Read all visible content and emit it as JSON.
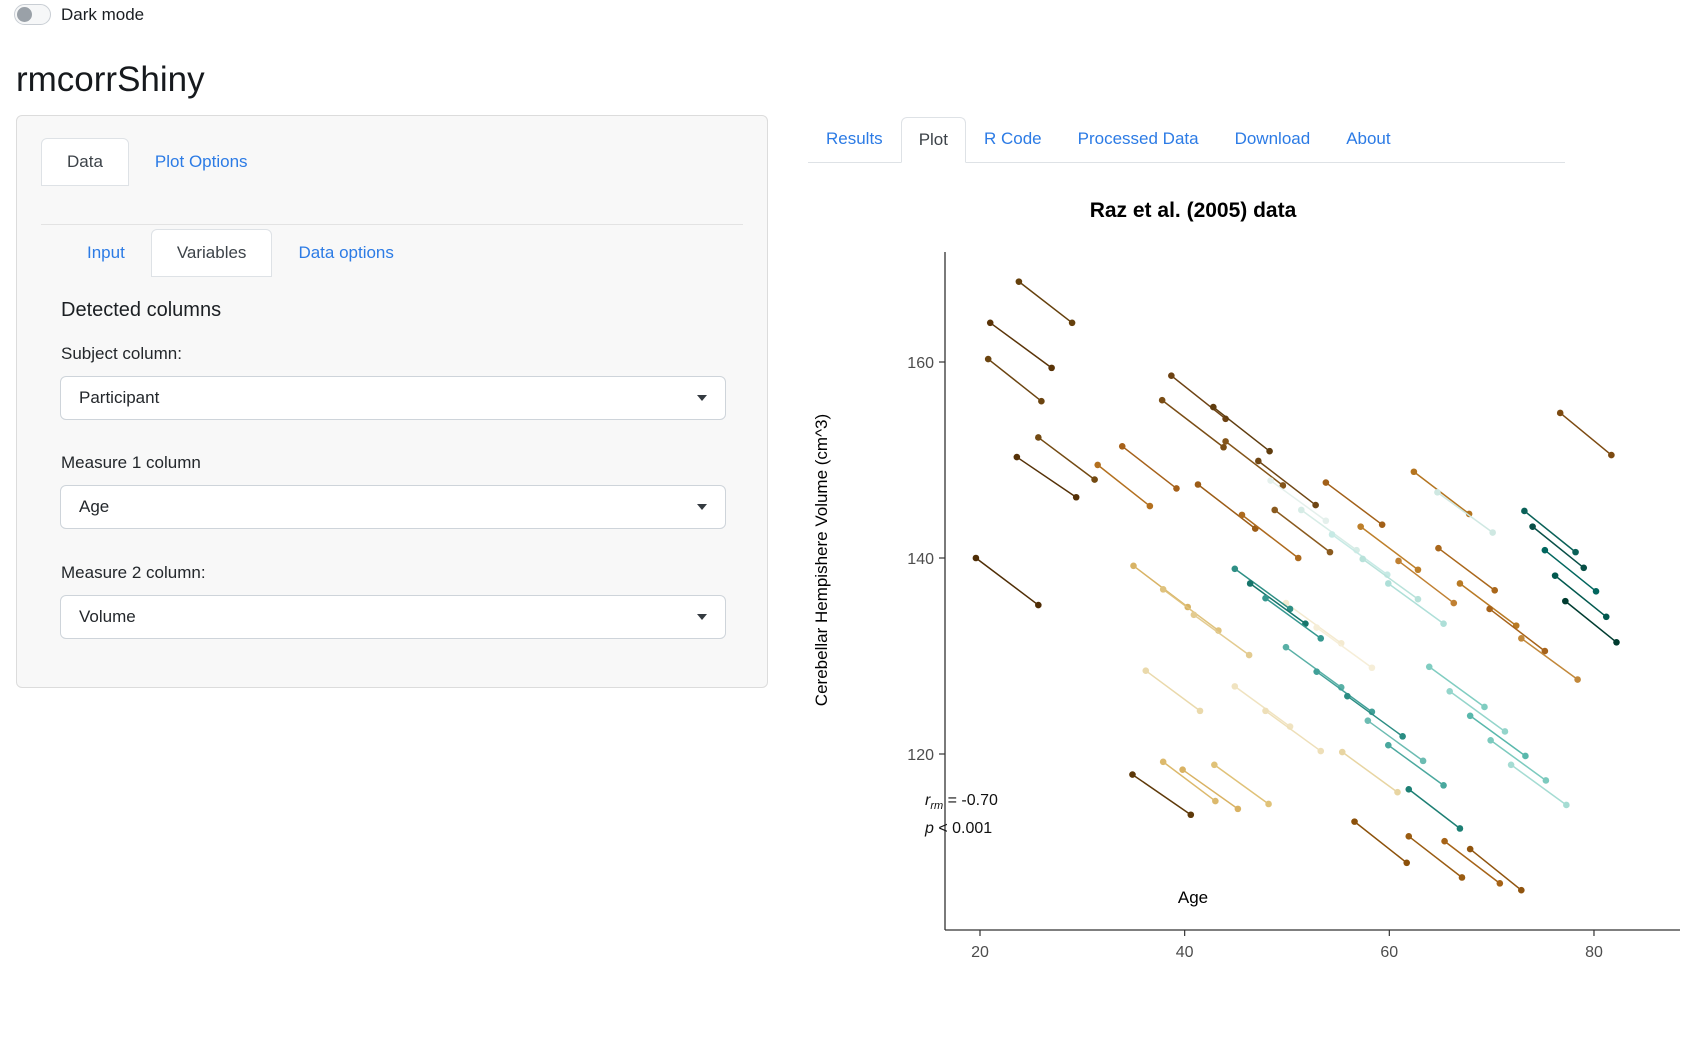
{
  "header": {
    "dark_mode_label": "Dark mode",
    "app_title": "rmcorrShiny"
  },
  "left_panel": {
    "tabs": [
      {
        "label": "Data"
      },
      {
        "label": "Plot Options"
      }
    ],
    "subtabs": [
      {
        "label": "Input"
      },
      {
        "label": "Variables"
      },
      {
        "label": "Data options"
      }
    ],
    "section_title": "Detected columns",
    "fields": [
      {
        "label": "Subject column:",
        "value": "Participant"
      },
      {
        "label": "Measure 1 column",
        "value": "Age"
      },
      {
        "label": "Measure 2 column:",
        "value": "Volume"
      }
    ]
  },
  "right_panel": {
    "tabs": [
      {
        "label": "Results"
      },
      {
        "label": "Plot"
      },
      {
        "label": "R Code"
      },
      {
        "label": "Processed Data"
      },
      {
        "label": "Download"
      },
      {
        "label": "About"
      }
    ]
  },
  "chart_data": {
    "type": "scatter",
    "title": "Raz et al. (2005) data",
    "xlabel": "Age",
    "ylabel": "Cerebellar Hempishere Volume (cm^3)",
    "x_ticks": [
      20,
      40,
      60,
      80
    ],
    "y_ticks": [
      160,
      140,
      120
    ],
    "xlim": [
      16.5,
      88.4
    ],
    "ylim": [
      102,
      171.2
    ],
    "grid": false,
    "legend": "none",
    "annotation": {
      "r_symbol": "r",
      "r_sub": "rm",
      "r_eq": " = -0.70",
      "p_line_italic": "p",
      "p_line_rest": " < 0.001"
    },
    "axis_color": "#333333",
    "tick_text_color": "#4d4d4d",
    "subjects": [
      {
        "c": "#4f2d05",
        "p": [
          [
            19.6,
            140.0
          ],
          [
            25.7,
            135.2
          ]
        ]
      },
      {
        "c": "#5a3408",
        "p": [
          [
            21.0,
            164.0
          ],
          [
            27.0,
            159.4
          ]
        ]
      },
      {
        "c": "#65400c",
        "p": [
          [
            23.8,
            168.2
          ],
          [
            29.0,
            164.0
          ]
        ]
      },
      {
        "c": "#6b4410",
        "p": [
          [
            20.8,
            160.3
          ],
          [
            26.0,
            156.0
          ]
        ]
      },
      {
        "c": "#553107",
        "p": [
          [
            23.6,
            150.3
          ],
          [
            29.4,
            146.2
          ]
        ]
      },
      {
        "c": "#734a12",
        "p": [
          [
            25.7,
            152.3
          ],
          [
            31.2,
            148.0
          ]
        ]
      },
      {
        "c": "#5e3909",
        "p": [
          [
            34.9,
            117.9
          ],
          [
            40.6,
            113.8
          ]
        ]
      },
      {
        "c": "#6d4213",
        "p": [
          [
            38.7,
            158.6
          ],
          [
            44.0,
            154.2
          ]
        ]
      },
      {
        "c": "#7a4d15",
        "p": [
          [
            37.8,
            156.1
          ],
          [
            43.8,
            151.3
          ]
        ]
      },
      {
        "c": "#5f3c0e",
        "p": [
          [
            42.8,
            155.4
          ],
          [
            48.3,
            150.9
          ]
        ]
      },
      {
        "c": "#84551a",
        "p": [
          [
            44.0,
            151.9
          ],
          [
            49.6,
            147.4
          ]
        ]
      },
      {
        "c": "#6f4614",
        "p": [
          [
            47.2,
            149.9
          ],
          [
            52.8,
            145.4
          ]
        ]
      },
      {
        "c": "#8a5a1e",
        "p": [
          [
            48.8,
            144.9
          ],
          [
            54.2,
            140.6
          ]
        ]
      },
      {
        "c": "#7c4a11",
        "p": [
          [
            76.7,
            154.8
          ],
          [
            81.7,
            150.5
          ]
        ]
      },
      {
        "c": "#a6611a",
        "p": [
          [
            33.9,
            151.4
          ],
          [
            39.2,
            147.1
          ]
        ]
      },
      {
        "c": "#b3701f",
        "p": [
          [
            31.5,
            149.5
          ],
          [
            36.6,
            145.3
          ]
        ]
      },
      {
        "c": "#9c5c16",
        "p": [
          [
            41.3,
            147.5
          ],
          [
            46.9,
            143.0
          ]
        ]
      },
      {
        "c": "#ad6a1e",
        "p": [
          [
            45.6,
            144.4
          ],
          [
            51.1,
            140.0
          ]
        ]
      },
      {
        "c": "#a26018",
        "p": [
          [
            53.8,
            147.7
          ],
          [
            59.3,
            143.4
          ]
        ]
      },
      {
        "c": "#b4741f",
        "p": [
          [
            62.4,
            148.8
          ],
          [
            67.8,
            144.5
          ]
        ]
      },
      {
        "c": "#bd7f2a",
        "p": [
          [
            57.2,
            143.2
          ],
          [
            62.8,
            138.8
          ]
        ]
      },
      {
        "c": "#aa671b",
        "p": [
          [
            64.8,
            141.0
          ],
          [
            70.3,
            136.7
          ]
        ]
      },
      {
        "c": "#c08032",
        "p": [
          [
            60.9,
            139.7
          ],
          [
            66.3,
            135.4
          ]
        ]
      },
      {
        "c": "#b87a24",
        "p": [
          [
            66.9,
            137.4
          ],
          [
            72.4,
            133.1
          ]
        ]
      },
      {
        "c": "#a7631a",
        "p": [
          [
            69.8,
            134.8
          ],
          [
            75.2,
            130.5
          ]
        ]
      },
      {
        "c": "#c2883a",
        "p": [
          [
            72.9,
            131.8
          ],
          [
            78.4,
            127.6
          ]
        ]
      },
      {
        "c": "#d8b365",
        "p": [
          [
            35.0,
            139.2
          ],
          [
            40.3,
            135.0
          ]
        ]
      },
      {
        "c": "#dfc27d",
        "p": [
          [
            37.9,
            136.8
          ],
          [
            43.3,
            132.6
          ]
        ]
      },
      {
        "c": "#e3cb90",
        "p": [
          [
            40.9,
            134.2
          ],
          [
            46.3,
            130.1
          ]
        ]
      },
      {
        "c": "#ead9ab",
        "p": [
          [
            36.2,
            128.5
          ],
          [
            41.5,
            124.4
          ]
        ]
      },
      {
        "c": "#dcb96c",
        "p": [
          [
            37.9,
            119.2
          ],
          [
            43.0,
            115.2
          ]
        ]
      },
      {
        "c": "#d9b263",
        "p": [
          [
            39.8,
            118.4
          ],
          [
            45.2,
            114.4
          ]
        ]
      },
      {
        "c": "#e0c278",
        "p": [
          [
            42.9,
            118.9
          ],
          [
            48.2,
            114.9
          ]
        ]
      },
      {
        "c": "#f0e3c0",
        "p": [
          [
            44.9,
            126.9
          ],
          [
            50.3,
            122.8
          ]
        ]
      },
      {
        "c": "#eedfb8",
        "p": [
          [
            47.9,
            124.4
          ],
          [
            53.3,
            120.3
          ]
        ]
      },
      {
        "c": "#f4ead0",
        "p": [
          [
            49.9,
            135.4
          ],
          [
            55.3,
            131.3
          ]
        ]
      },
      {
        "c": "#f6eed8",
        "p": [
          [
            52.9,
            132.9
          ],
          [
            58.3,
            128.8
          ]
        ]
      },
      {
        "c": "#e8d5a2",
        "p": [
          [
            55.4,
            120.2
          ],
          [
            60.8,
            116.1
          ]
        ]
      },
      {
        "c": "#e4f0ec",
        "p": [
          [
            48.4,
            147.9
          ],
          [
            53.8,
            143.8
          ]
        ]
      },
      {
        "c": "#d6ece6",
        "p": [
          [
            51.4,
            144.9
          ],
          [
            56.8,
            140.8
          ]
        ]
      },
      {
        "c": "#c7eae5",
        "p": [
          [
            54.4,
            142.4
          ],
          [
            59.8,
            138.3
          ]
        ]
      },
      {
        "c": "#cfe8e2",
        "p": [
          [
            64.7,
            146.7
          ],
          [
            70.1,
            142.6
          ]
        ]
      },
      {
        "c": "#b8e2da",
        "p": [
          [
            57.4,
            139.9
          ],
          [
            62.8,
            135.8
          ]
        ]
      },
      {
        "c": "#aedfd8",
        "p": [
          [
            59.9,
            137.4
          ],
          [
            65.3,
            133.3
          ]
        ]
      },
      {
        "c": "#2e8f85",
        "p": [
          [
            44.9,
            138.9
          ],
          [
            50.3,
            134.8
          ]
        ]
      },
      {
        "c": "#16756b",
        "p": [
          [
            46.4,
            137.4
          ],
          [
            51.8,
            133.3
          ]
        ]
      },
      {
        "c": "#35978f",
        "p": [
          [
            47.9,
            135.9
          ],
          [
            53.3,
            131.8
          ]
        ]
      },
      {
        "c": "#59b0a6",
        "p": [
          [
            49.9,
            130.9
          ],
          [
            55.3,
            126.8
          ]
        ]
      },
      {
        "c": "#41a098",
        "p": [
          [
            52.9,
            128.4
          ],
          [
            58.3,
            124.3
          ]
        ]
      },
      {
        "c": "#2b8d83",
        "p": [
          [
            55.9,
            125.9
          ],
          [
            61.3,
            121.8
          ]
        ]
      },
      {
        "c": "#6cbcb2",
        "p": [
          [
            57.9,
            123.4
          ],
          [
            63.3,
            119.3
          ]
        ]
      },
      {
        "c": "#4aa89e",
        "p": [
          [
            59.9,
            120.9
          ],
          [
            65.3,
            116.8
          ]
        ]
      },
      {
        "c": "#1d7f74",
        "p": [
          [
            61.9,
            116.4
          ],
          [
            66.9,
            112.4
          ]
        ]
      },
      {
        "c": "#80cdc1",
        "p": [
          [
            63.9,
            128.9
          ],
          [
            69.3,
            124.8
          ]
        ]
      },
      {
        "c": "#94d5cb",
        "p": [
          [
            65.9,
            126.4
          ],
          [
            71.3,
            122.3
          ]
        ]
      },
      {
        "c": "#59b8ac",
        "p": [
          [
            67.9,
            123.9
          ],
          [
            73.3,
            119.8
          ]
        ]
      },
      {
        "c": "#7ccabe",
        "p": [
          [
            69.9,
            121.4
          ],
          [
            75.3,
            117.3
          ]
        ]
      },
      {
        "c": "#a5dcd3",
        "p": [
          [
            71.9,
            118.9
          ],
          [
            77.3,
            114.8
          ]
        ]
      },
      {
        "c": "#0a6158",
        "p": [
          [
            73.2,
            144.8
          ],
          [
            78.2,
            140.6
          ]
        ]
      },
      {
        "c": "#084f47",
        "p": [
          [
            74.0,
            143.2
          ],
          [
            79.0,
            139.0
          ]
        ]
      },
      {
        "c": "#01665e",
        "p": [
          [
            75.2,
            140.8
          ],
          [
            80.2,
            136.6
          ]
        ]
      },
      {
        "c": "#02594f",
        "p": [
          [
            76.2,
            138.2
          ],
          [
            81.2,
            134.0
          ]
        ]
      },
      {
        "c": "#003c30",
        "p": [
          [
            77.2,
            135.6
          ],
          [
            82.2,
            131.4
          ]
        ]
      },
      {
        "c": "#8c510a",
        "p": [
          [
            56.6,
            113.1
          ],
          [
            61.7,
            108.9
          ]
        ]
      },
      {
        "c": "#9a5c12",
        "p": [
          [
            61.9,
            111.6
          ],
          [
            67.1,
            107.4
          ]
        ]
      },
      {
        "c": "#a66317",
        "p": [
          [
            65.4,
            111.1
          ],
          [
            70.8,
            106.8
          ]
        ]
      },
      {
        "c": "#90540e",
        "p": [
          [
            67.9,
            110.3
          ],
          [
            72.9,
            106.1
          ]
        ]
      }
    ]
  }
}
